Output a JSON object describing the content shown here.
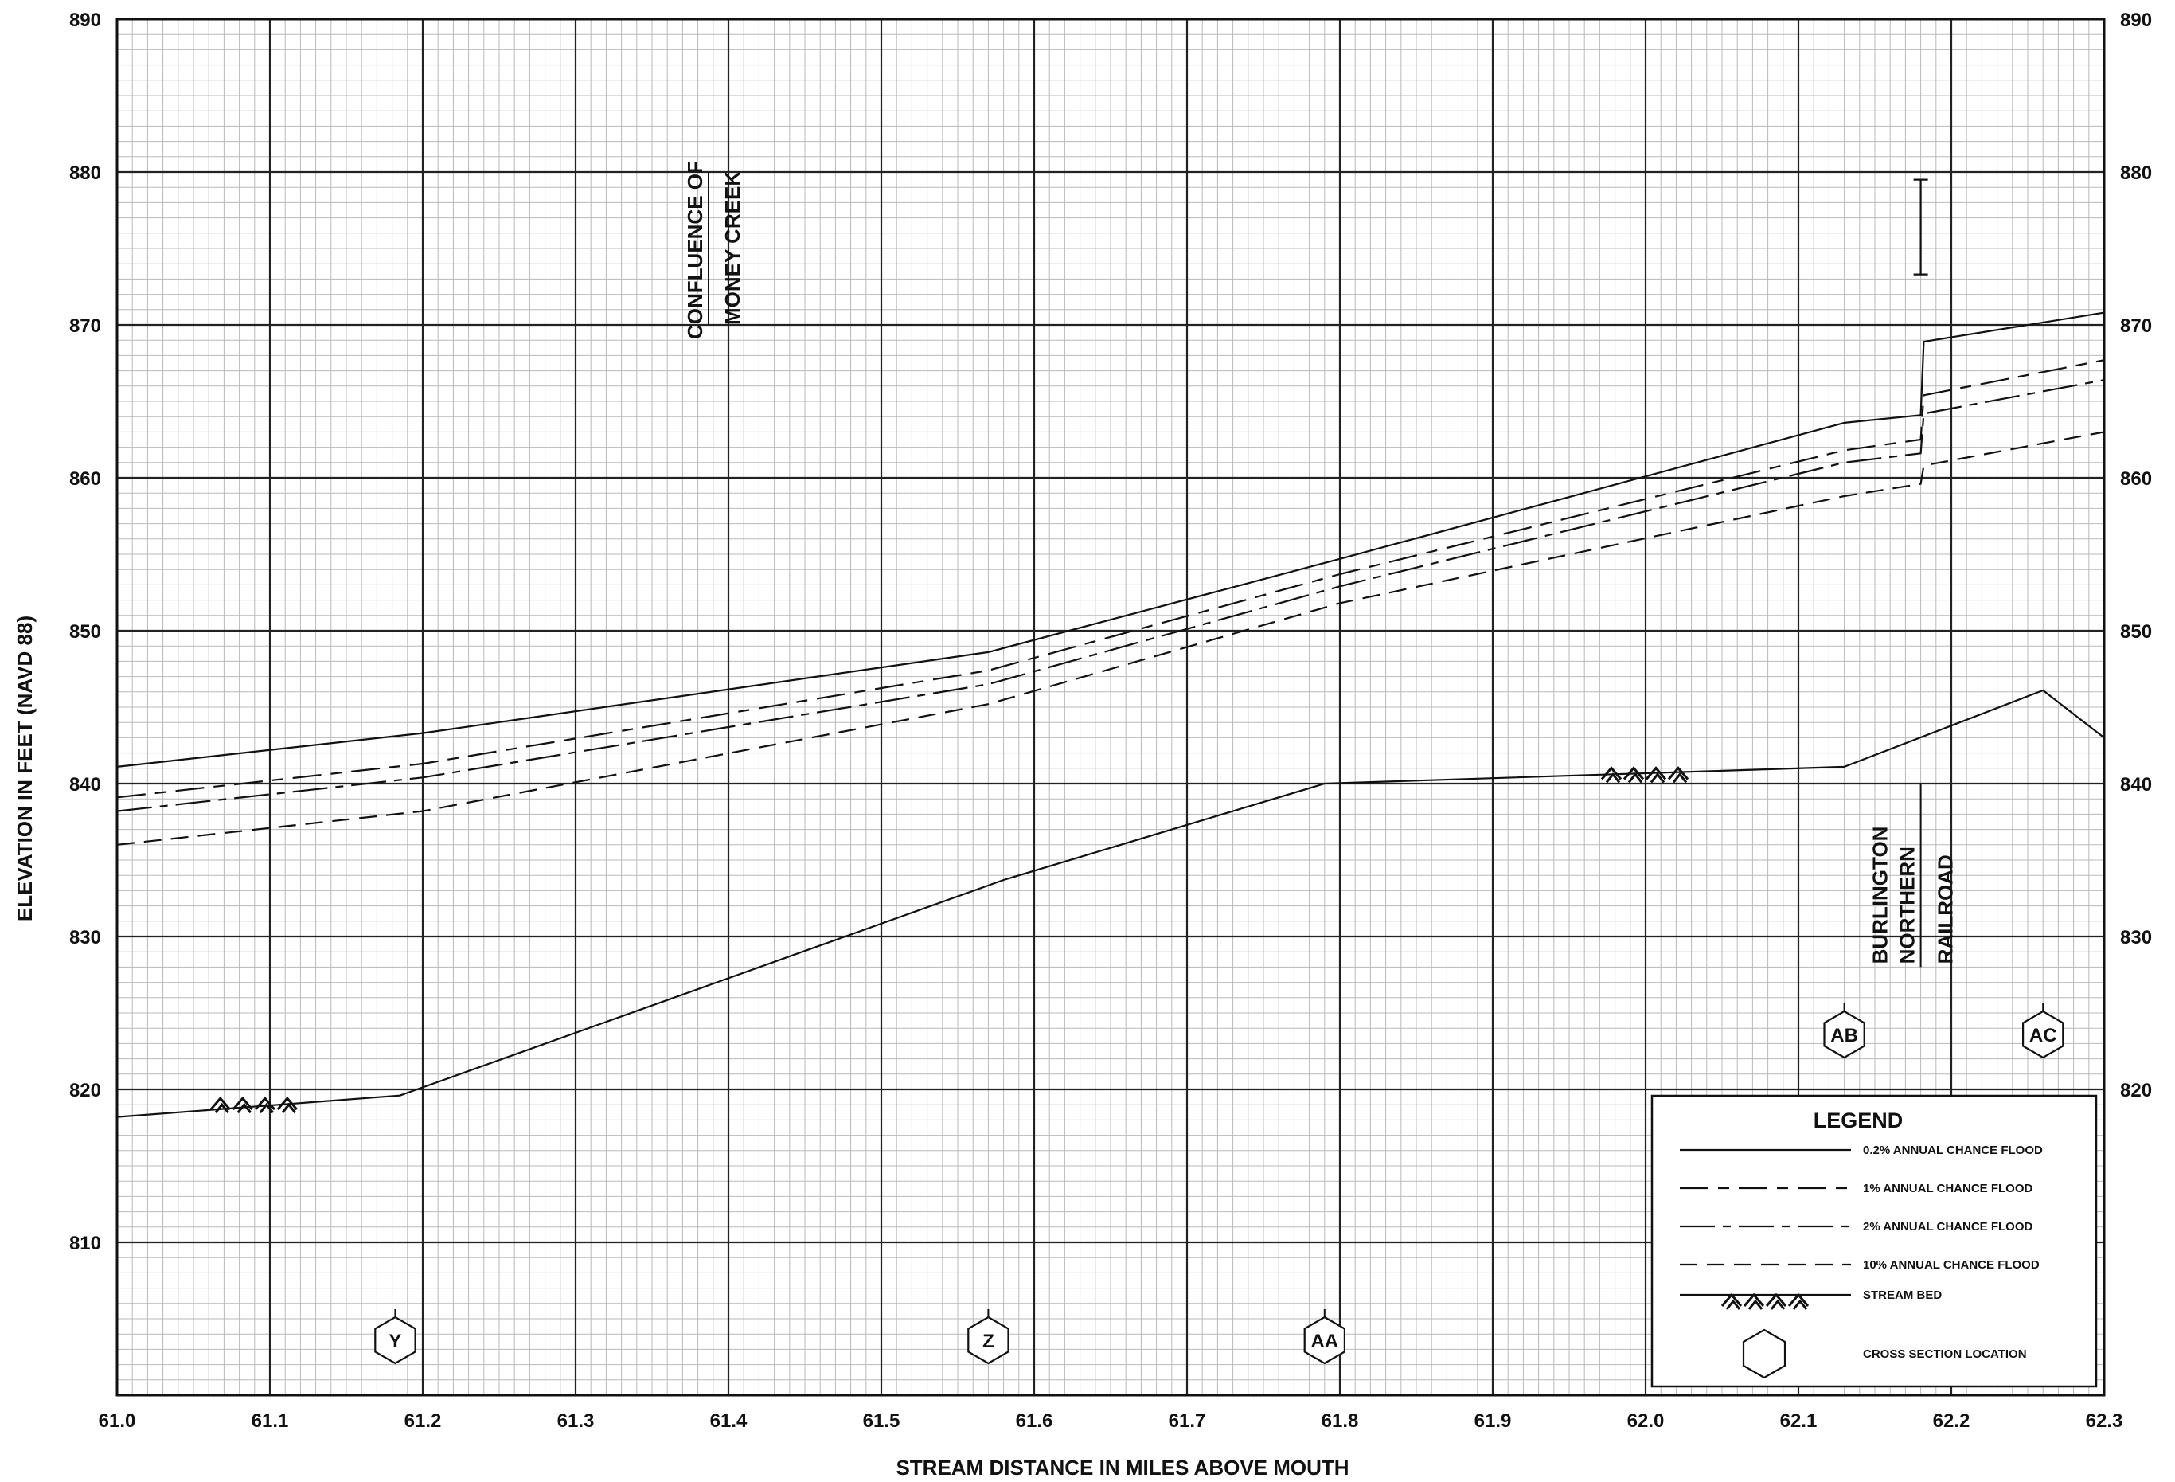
{
  "chart_data": {
    "type": "line",
    "xlabel": "STREAM DISTANCE IN MILES ABOVE MOUTH",
    "ylabel": "ELEVATION IN FEET (NAVD 88)",
    "xlim": [
      61.0,
      62.3
    ],
    "ylim": [
      800,
      890
    ],
    "x_ticks": [
      "61.0",
      "61.1",
      "61.2",
      "61.3",
      "61.4",
      "61.5",
      "61.6",
      "61.7",
      "61.8",
      "61.9",
      "62.0",
      "62.1",
      "62.2",
      "62.3"
    ],
    "y_ticks_left": [
      "890",
      "880",
      "870",
      "860",
      "850",
      "840",
      "830",
      "820",
      "810"
    ],
    "y_ticks_right": [
      "890",
      "880",
      "870",
      "860",
      "850",
      "840",
      "830",
      "820"
    ],
    "grid": "on",
    "legend_placement": "bottom-right",
    "series": [
      {
        "name": "0.2% ANNUAL CHANCE FLOOD",
        "dash": "solid",
        "points": [
          [
            61.0,
            841.1
          ],
          [
            61.2,
            843.3
          ],
          [
            61.57,
            848.6
          ],
          [
            61.8,
            854.7
          ],
          [
            62.13,
            863.6
          ],
          [
            62.18,
            864.1
          ],
          [
            62.182,
            868.9
          ],
          [
            62.3,
            870.8
          ]
        ]
      },
      {
        "name": "1% ANNUAL CHANCE FLOOD",
        "dash": "medium",
        "points": [
          [
            61.0,
            839.1
          ],
          [
            61.2,
            841.3
          ],
          [
            61.57,
            847.4
          ],
          [
            61.8,
            853.7
          ],
          [
            62.13,
            861.8
          ],
          [
            62.18,
            862.5
          ],
          [
            62.182,
            865.4
          ],
          [
            62.3,
            867.7
          ]
        ]
      },
      {
        "name": "2% ANNUAL CHANCE FLOOD",
        "dash": "long",
        "points": [
          [
            61.0,
            838.2
          ],
          [
            61.2,
            840.4
          ],
          [
            61.57,
            846.5
          ],
          [
            61.8,
            852.9
          ],
          [
            62.13,
            861.0
          ],
          [
            62.18,
            861.6
          ],
          [
            62.182,
            864.2
          ],
          [
            62.3,
            866.4
          ]
        ]
      },
      {
        "name": "10% ANNUAL CHANCE FLOOD",
        "dash": "short",
        "points": [
          [
            61.0,
            836.0
          ],
          [
            61.2,
            838.2
          ],
          [
            61.57,
            845.2
          ],
          [
            61.8,
            851.8
          ],
          [
            62.13,
            858.8
          ],
          [
            62.18,
            859.6
          ],
          [
            62.182,
            860.8
          ],
          [
            62.3,
            863.0
          ]
        ]
      },
      {
        "name": "STREAM BED",
        "dash": "solid",
        "points": [
          [
            61.0,
            818.2
          ],
          [
            61.185,
            819.6
          ],
          [
            61.58,
            833.7
          ],
          [
            61.79,
            840.0
          ],
          [
            62.13,
            841.1
          ],
          [
            62.26,
            846.1
          ],
          [
            62.3,
            843.0
          ]
        ]
      }
    ],
    "stream_bed_symbols": [
      {
        "x": 61.09,
        "y": 819.0
      },
      {
        "x": 62.0,
        "y": 840.6
      }
    ],
    "annotations": {
      "confluence": {
        "x": 61.4,
        "y_range": [
          870,
          880
        ],
        "line1": "CONFLUENCE OF",
        "line2": "MONEY CREEK"
      },
      "railroad": {
        "x_range": [
          62.1,
          62.2
        ],
        "line1": "BURLINGTON",
        "line2": "NORTHERN",
        "line3": "RAILROAD"
      },
      "railroad_bar": {
        "x": 62.18,
        "y_range": [
          873.3,
          879.5
        ]
      }
    },
    "cross_sections": [
      {
        "label": "Y",
        "x": 61.182
      },
      {
        "label": "Z",
        "x": 61.57
      },
      {
        "label": "AA",
        "x": 61.79
      },
      {
        "label": "AB",
        "x": 62.13
      },
      {
        "label": "AC",
        "x": 62.26
      }
    ],
    "legend": {
      "title": "LEGEND",
      "items": [
        {
          "label": "0.2% ANNUAL CHANCE FLOOD",
          "kind": "solid"
        },
        {
          "label": "1% ANNUAL CHANCE FLOOD",
          "kind": "medium"
        },
        {
          "label": "2% ANNUAL CHANCE FLOOD",
          "kind": "long"
        },
        {
          "label": "10% ANNUAL CHANCE FLOOD",
          "kind": "short"
        },
        {
          "label": "STREAM BED",
          "kind": "bed"
        },
        {
          "label": "CROSS SECTION LOCATION",
          "kind": "hex"
        }
      ]
    }
  }
}
